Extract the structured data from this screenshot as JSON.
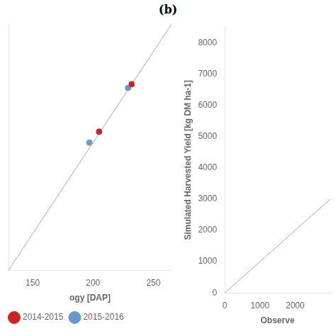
{
  "chart_data": [
    {
      "type": "scatter",
      "x_label": "ogy [DAP]",
      "xlim": [
        130,
        265
      ],
      "ylim": [
        130,
        265
      ],
      "xticks": [
        150,
        200,
        250
      ],
      "tick_labels": "x",
      "grid": false,
      "legend": "lower left",
      "series": [
        {
          "type": "line",
          "color": "#aaaaaa",
          "x": [
            130,
            265
          ],
          "values": [
            130,
            265
          ]
        },
        {
          "name": "2014-2015",
          "color": "#cc2222",
          "x": [
            205,
            232
          ],
          "values": [
            206,
            232
          ]
        },
        {
          "name": "2015-2016",
          "color": "#6699cc",
          "x": [
            197,
            229
          ],
          "values": [
            200,
            230
          ]
        }
      ]
    },
    {
      "type": "scatter",
      "title": "(b)",
      "x_label": "Observe",
      "y_label": "Simulated Harvested Yield [kg DM ha-1]",
      "xlim": [
        0,
        3000
      ],
      "ylim": [
        0,
        8500
      ],
      "xticks": [
        0,
        1000,
        2000
      ],
      "yticks": [
        0,
        1000,
        2000,
        3000,
        4000,
        5000,
        6000,
        7000,
        8000
      ],
      "grid": false,
      "series": [
        {
          "type": "line",
          "color": "#aaaaaa",
          "x": [
            0,
            3000
          ],
          "values": [
            0,
            3000
          ]
        }
      ]
    }
  ]
}
